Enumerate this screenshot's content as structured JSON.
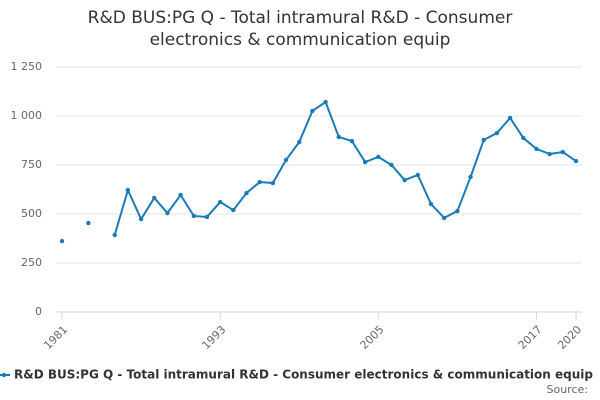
{
  "chart_data": {
    "type": "line",
    "title": [
      "R&D BUS:PG Q - Total intramural R&D - Consumer",
      "electronics & communication equip"
    ],
    "x": [
      1981,
      1982,
      1983,
      1984,
      1985,
      1986,
      1987,
      1988,
      1989,
      1990,
      1991,
      1992,
      1993,
      1994,
      1995,
      1996,
      1997,
      1998,
      1999,
      2000,
      2001,
      2002,
      2003,
      2004,
      2005,
      2006,
      2007,
      2008,
      2009,
      2010,
      2011,
      2012,
      2013,
      2014,
      2015,
      2016,
      2017,
      2018,
      2019,
      2020
    ],
    "series": [
      {
        "name": "R&D BUS:PG Q - Total intramural R&D - Consumer electronics & communication equip",
        "color": "#1a7bb9",
        "values": [
          362,
          null,
          454,
          null,
          393,
          622,
          474,
          582,
          505,
          597,
          490,
          485,
          561,
          520,
          607,
          663,
          658,
          776,
          867,
          1026,
          1071,
          893,
          872,
          765,
          791,
          750,
          673,
          699,
          551,
          480,
          515,
          689,
          878,
          913,
          990,
          888,
          832,
          806,
          816,
          770
        ]
      }
    ],
    "xlim": [
      1981,
      2020
    ],
    "xticks": [
      1981,
      1993,
      2005,
      2017,
      2020
    ],
    "ylim": [
      0,
      1250
    ],
    "yticks": [
      0,
      250,
      500,
      750,
      {
        "value": 1000,
        "label": "1 000"
      },
      {
        "value": 1250,
        "label": "1 250"
      }
    ],
    "grid": true,
    "source": "Source:"
  }
}
